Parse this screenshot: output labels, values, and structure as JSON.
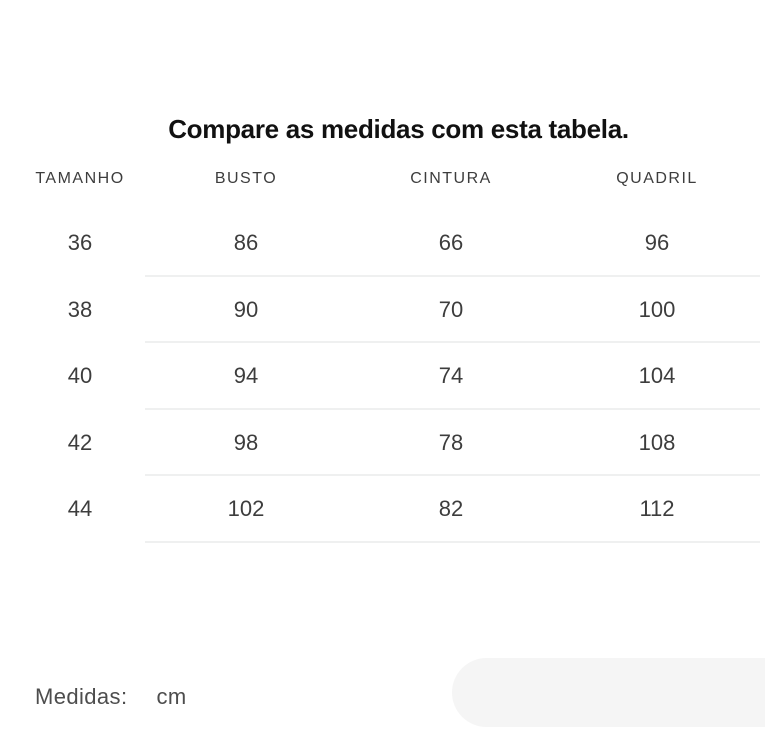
{
  "page": {
    "title": "Compare as medidas com esta tabela."
  },
  "size_table": {
    "headers": [
      "TAMANHO",
      "BUSTO",
      "CINTURA",
      "QUADRIL"
    ],
    "rows": [
      [
        "36",
        "86",
        "66",
        "96"
      ],
      [
        "38",
        "90",
        "70",
        "100"
      ],
      [
        "40",
        "94",
        "74",
        "104"
      ],
      [
        "42",
        "98",
        "78",
        "108"
      ],
      [
        "44",
        "102",
        "82",
        "112"
      ]
    ]
  },
  "footer": {
    "label": "Medidas:",
    "unit": "cm"
  },
  "colors": {
    "divider": "#eff0f0",
    "panel": "#f5f5f5",
    "text": "#3d3d3d",
    "title": "#111111"
  }
}
